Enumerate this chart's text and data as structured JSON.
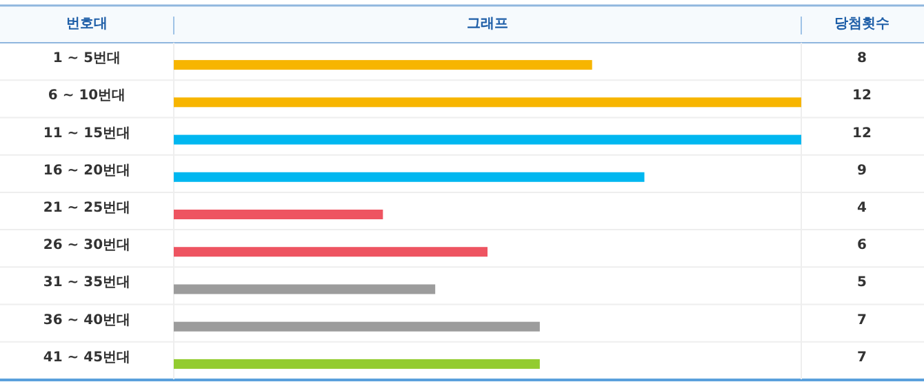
{
  "chart_data": {
    "type": "bar",
    "orientation": "horizontal",
    "data_labels": true,
    "ylabel": "번호대",
    "xlabel": "그래프",
    "annotations": [
      "당첨횟수"
    ],
    "categories": [
      "1 ~ 5번대",
      "6 ~ 10번대",
      "11 ~ 15번대",
      "16 ~ 20번대",
      "21 ~ 25번대",
      "26 ~ 30번대",
      "31 ~ 35번대",
      "36 ~ 40번대",
      "41 ~ 45번대"
    ],
    "values": [
      8,
      12,
      12,
      9,
      4,
      6,
      5,
      7,
      7
    ],
    "colors": [
      "#f7b500",
      "#f7b500",
      "#00b7f0",
      "#00b7f0",
      "#ee5461",
      "#ee5461",
      "#9c9c9c",
      "#9c9c9c",
      "#93cc30"
    ]
  }
}
